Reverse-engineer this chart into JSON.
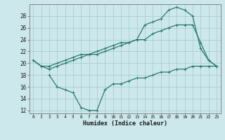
{
  "xlabel": "Humidex (Indice chaleur)",
  "bg_color": "#cce8ec",
  "grid_color": "#aacdd4",
  "line_color": "#2a7a70",
  "xlim": [
    -0.5,
    23.5
  ],
  "ylim": [
    11.5,
    30.0
  ],
  "yticks": [
    12,
    14,
    16,
    18,
    20,
    22,
    24,
    26,
    28
  ],
  "xticks": [
    0,
    1,
    2,
    3,
    4,
    5,
    6,
    7,
    8,
    9,
    10,
    11,
    12,
    13,
    14,
    15,
    16,
    17,
    18,
    19,
    20,
    21,
    22,
    23
  ],
  "line1_x": [
    0,
    1,
    2,
    3,
    4,
    5,
    6,
    7,
    8,
    9,
    10,
    11,
    12,
    13,
    14,
    15,
    16,
    17,
    18,
    19,
    20,
    21,
    22,
    23
  ],
  "line1_y": [
    20.5,
    19.5,
    19.0,
    19.5,
    20.0,
    20.5,
    21.0,
    21.5,
    22.0,
    22.5,
    23.0,
    23.5,
    23.5,
    24.0,
    26.5,
    27.0,
    27.5,
    29.0,
    29.5,
    29.0,
    28.0,
    22.5,
    20.5,
    19.5
  ],
  "line2_x": [
    0,
    1,
    2,
    3,
    4,
    5,
    6,
    7,
    8,
    9,
    10,
    11,
    12,
    13,
    14,
    15,
    16,
    17,
    18,
    19,
    20,
    21,
    22,
    23
  ],
  "line2_y": [
    20.5,
    19.5,
    19.5,
    20.0,
    20.5,
    21.0,
    21.5,
    21.5,
    21.5,
    22.0,
    22.5,
    23.0,
    23.5,
    24.0,
    24.0,
    25.0,
    25.5,
    26.0,
    26.5,
    26.5,
    26.5,
    23.5,
    20.5,
    19.5
  ],
  "line3_x": [
    2,
    3,
    4,
    5,
    6,
    7,
    8,
    9,
    10,
    11,
    12,
    13,
    14,
    15,
    16,
    17,
    18,
    19,
    20,
    21,
    22,
    23
  ],
  "line3_y": [
    18.0,
    16.0,
    15.5,
    15.0,
    12.5,
    12.0,
    12.0,
    15.5,
    16.5,
    16.5,
    17.0,
    17.5,
    17.5,
    18.0,
    18.5,
    18.5,
    19.0,
    19.0,
    19.5,
    19.5,
    19.5,
    19.5
  ]
}
